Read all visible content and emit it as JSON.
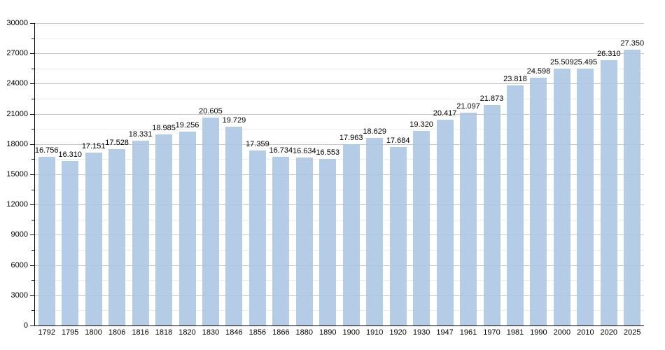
{
  "chart_data": {
    "type": "bar",
    "title": "",
    "xlabel": "",
    "ylabel": "",
    "categories": [
      "1792",
      "1795",
      "1800",
      "1806",
      "1816",
      "1818",
      "1820",
      "1830",
      "1846",
      "1856",
      "1866",
      "1880",
      "1890",
      "1900",
      "1910",
      "1920",
      "1930",
      "1947",
      "1961",
      "1970",
      "1981",
      "1990",
      "2000",
      "2010",
      "2020",
      "2025"
    ],
    "values": [
      16756,
      16310,
      17151,
      17528,
      18331,
      18985,
      19256,
      20605,
      19729,
      17359,
      16734,
      16634,
      16553,
      17963,
      18629,
      17684,
      19320,
      20417,
      21097,
      21873,
      23818,
      24598,
      25509,
      25495,
      26310,
      27350
    ],
    "value_labels": [
      "16.756",
      "16.310",
      "17.151",
      "17.528",
      "18.331",
      "18.985",
      "19.256",
      "20.605",
      "19.729",
      "17.359",
      "16.734",
      "16.634",
      "16.553",
      "17.963",
      "18.629",
      "17.684",
      "19.320",
      "20.417",
      "21.097",
      "21.873",
      "23.818",
      "24.598",
      "25.509",
      "25.495",
      "26.310",
      "27.350"
    ],
    "ylim": [
      0,
      30000
    ],
    "y_major_step": 3000,
    "y_minor_step": 1500,
    "y_tick_labels": [
      "0",
      "3000",
      "6000",
      "9000",
      "12000",
      "15000",
      "18000",
      "21000",
      "24000",
      "27000",
      "30000"
    ],
    "grid": true,
    "legend": false,
    "bar_color": "#b5cde6",
    "major_grid_color": "#c6c6c6",
    "minor_grid_color": "#ebebeb",
    "axis_color": "#000000"
  }
}
